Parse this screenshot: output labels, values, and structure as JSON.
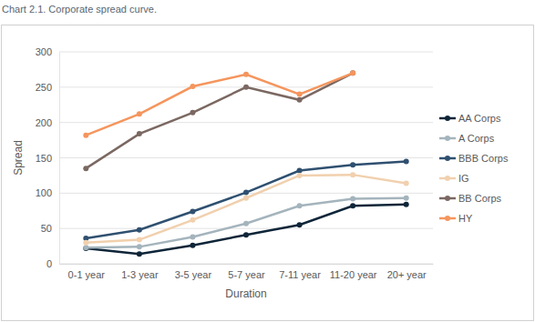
{
  "chart_data": {
    "type": "line",
    "title": "Chart 2.1. Corporate spread curve.",
    "x_label": "Duration",
    "y_label": "Spread",
    "categories": [
      "0-1 year",
      "1-3 year",
      "3-5 year",
      "5-7 year",
      "7-11 year",
      "11-20 year",
      "20+ year"
    ],
    "series": [
      {
        "name": "AA Corps",
        "color": "#0e2538",
        "values": [
          22,
          14,
          26,
          41,
          55,
          82,
          84
        ]
      },
      {
        "name": "A Corps",
        "color": "#a4b4bc",
        "values": [
          23,
          24,
          38,
          57,
          82,
          92,
          93
        ]
      },
      {
        "name": "BBB Corps",
        "color": "#2f5070",
        "values": [
          36,
          48,
          74,
          101,
          132,
          140,
          145
        ]
      },
      {
        "name": "IG",
        "color": "#f1d0ae",
        "values": [
          30,
          34,
          62,
          93,
          125,
          126,
          114
        ]
      },
      {
        "name": "BB Corps",
        "color": "#7b6862",
        "values": [
          135,
          184,
          214,
          250,
          232,
          270,
          null
        ]
      },
      {
        "name": "HY",
        "color": "#f5955d",
        "values": [
          182,
          212,
          251,
          268,
          240,
          270,
          null
        ]
      }
    ],
    "ylim": [
      0,
      300
    ],
    "yticks": [
      0,
      50,
      100,
      150,
      200,
      250,
      300
    ],
    "grid": true,
    "legend": "right",
    "marker": "circle"
  }
}
